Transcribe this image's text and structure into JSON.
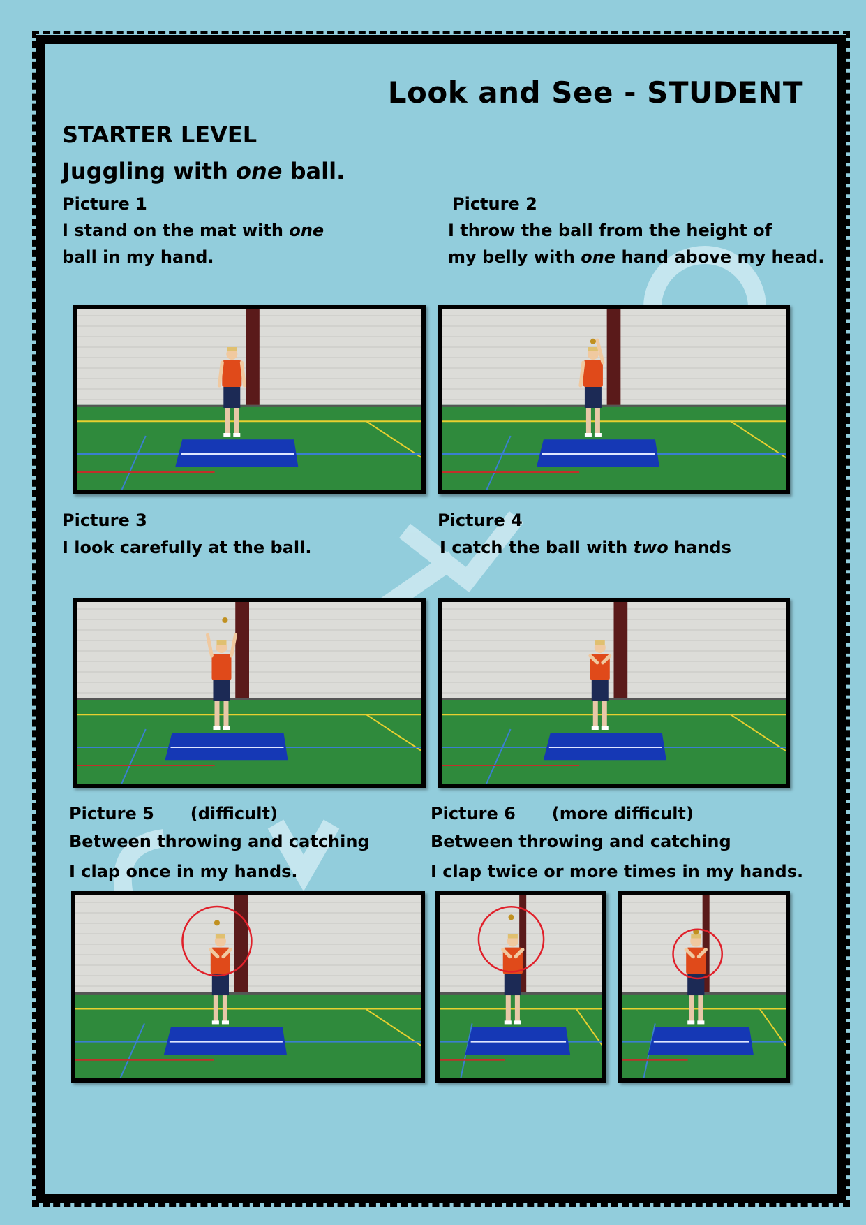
{
  "header": {
    "title": "Look and See  -  STUDENT",
    "level": "STARTER LEVEL",
    "subtitle_pre": "Juggling with ",
    "subtitle_em": "one",
    "subtitle_post": " ball."
  },
  "pictures": [
    {
      "caption": "Picture 1",
      "line1_pre": "I stand on the mat with ",
      "line1_em": "one",
      "line2": "ball in my hand."
    },
    {
      "caption": "Picture 2",
      "line1": "I throw the ball from the height of",
      "line2_pre": "my belly with ",
      "line2_em": "one",
      "line2_post": " hand above my head."
    },
    {
      "caption": "Picture 3",
      "line1": "I look carefully at the ball."
    },
    {
      "caption": "Picture 4",
      "line1_pre": "I catch the ball with ",
      "line1_em": "two",
      "line1_post": " hands"
    },
    {
      "caption": "Picture 5",
      "difficulty": "(difficult)",
      "line1": "Between throwing and catching",
      "line2": "I clap once in my hands."
    },
    {
      "caption": "Picture 6",
      "difficulty": "(more difficult)",
      "line1": "Between throwing and catching",
      "line2": "I clap twice or more times in my hands."
    }
  ],
  "colors": {
    "background": "#92cddc",
    "wall": "#dcdcd8",
    "floor": "#2f8a3c",
    "mat": "#1538b5",
    "shirt": "#e04a1a",
    "circle": "#e0202a"
  }
}
